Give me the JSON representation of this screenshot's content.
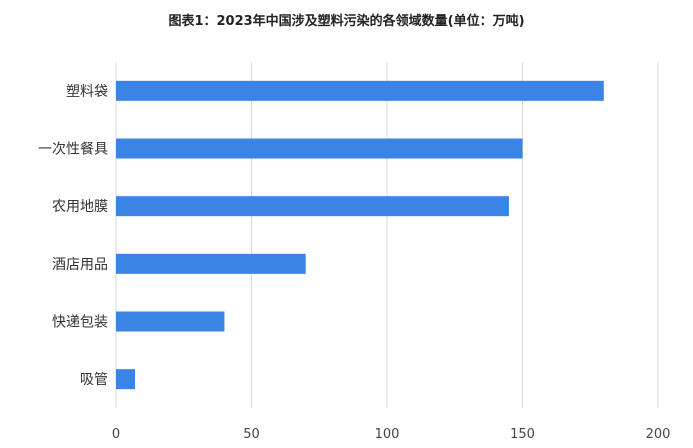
{
  "chart_data": {
    "type": "bar",
    "orientation": "horizontal",
    "title": "图表1：2023年中国涉及塑料污染的各领域数量(单位：万吨)",
    "categories": [
      "塑料袋",
      "一次性餐具",
      "农用地膜",
      "酒店用品",
      "快递包装",
      "吸管"
    ],
    "values": [
      180,
      150,
      145,
      70,
      40,
      7
    ],
    "xlim": [
      0,
      200
    ],
    "xticks": [
      0,
      50,
      100,
      150,
      200
    ],
    "grid": true,
    "bar_color": "#3b84e6",
    "grid_color": "#d9d9d9"
  }
}
